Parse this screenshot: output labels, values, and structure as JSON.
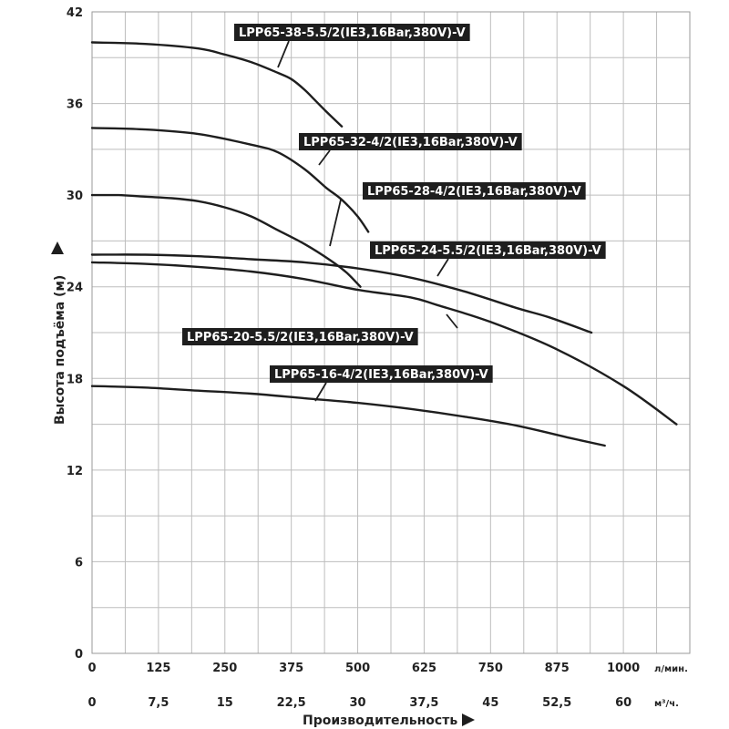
{
  "chart_data": {
    "type": "line",
    "xlabel": "Производительность",
    "ylabel": "Высота подъёма (м)",
    "x_unit_primary": "л/мин.",
    "x_unit_secondary": "м³/ч.",
    "xlim": [
      0,
      1125
    ],
    "ylim": [
      0,
      42
    ],
    "x_ticks_primary": [
      "0",
      "125",
      "250",
      "375",
      "500",
      "625",
      "750",
      "875",
      "1000"
    ],
    "x_ticks_secondary": [
      "0",
      "7,5",
      "15",
      "22,5",
      "30",
      "37,5",
      "45",
      "52,5",
      "60"
    ],
    "y_ticks": [
      "0",
      "6",
      "12",
      "18",
      "24",
      "30",
      "36",
      "42"
    ],
    "grid": true,
    "series": [
      {
        "name": "LPP65-38-5.5/2(IE3,16Bar,380V)-V",
        "x": [
          0,
          100,
          200,
          250,
          300,
          350,
          375,
          400,
          420,
          440,
          470
        ],
        "y": [
          40,
          39.9,
          39.6,
          39.2,
          38.7,
          38.0,
          37.6,
          36.9,
          36.2,
          35.5,
          34.5
        ]
      },
      {
        "name": "LPP65-32-4/2(IE3,16Bar,380V)-V",
        "x": [
          0,
          100,
          200,
          300,
          350,
          400,
          440,
          470,
          500,
          520
        ],
        "y": [
          34.4,
          34.3,
          34.0,
          33.3,
          32.8,
          31.7,
          30.5,
          29.7,
          28.6,
          27.6
        ]
      },
      {
        "name": "LPP65-28-4/2(IE3,16Bar,380V)-V",
        "x": [
          0,
          50,
          100,
          150,
          200,
          250,
          300,
          350,
          400,
          450,
          480,
          505
        ],
        "y": [
          30,
          30,
          29.9,
          29.8,
          29.6,
          29.2,
          28.6,
          27.7,
          26.8,
          25.7,
          24.9,
          24.0
        ]
      },
      {
        "name": "LPP65-24-5.5/2(IE3,16Bar,380V)-V",
        "x": [
          0,
          100,
          200,
          300,
          400,
          500,
          600,
          700,
          800,
          860,
          940
        ],
        "y": [
          26.1,
          26.1,
          26.0,
          25.8,
          25.6,
          25.2,
          24.6,
          23.7,
          22.6,
          22.0,
          21.0
        ]
      },
      {
        "name": "LPP65-20-5.5/2(IE3,16Bar,380V)-V",
        "x": [
          0,
          100,
          200,
          300,
          400,
          500,
          600,
          650,
          750,
          875,
          1000,
          1100
        ],
        "y": [
          25.6,
          25.5,
          25.3,
          25.0,
          24.5,
          23.8,
          23.3,
          22.8,
          21.7,
          19.9,
          17.5,
          15.0
        ]
      },
      {
        "name": "LPP65-16-4/2(IE3,16Bar,380V)-V",
        "x": [
          0,
          100,
          200,
          300,
          400,
          500,
          600,
          700,
          800,
          900,
          965
        ],
        "y": [
          17.5,
          17.4,
          17.2,
          17.0,
          16.7,
          16.4,
          16.0,
          15.5,
          14.9,
          14.1,
          13.6
        ]
      }
    ]
  }
}
